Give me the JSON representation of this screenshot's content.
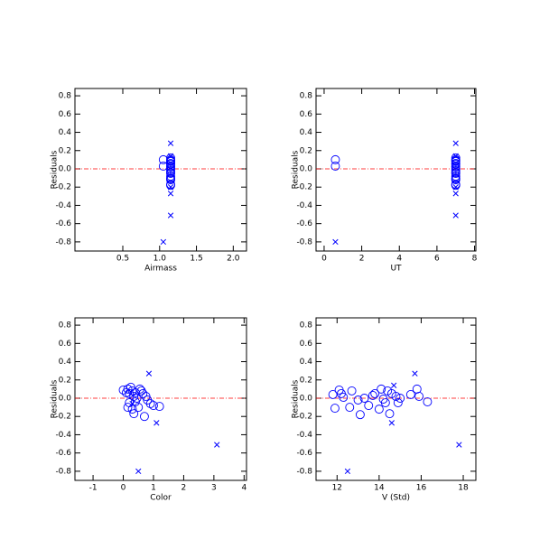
{
  "chart_data": [
    {
      "type": "scatter",
      "xlabel": "Airmass",
      "ylabel": "Residuals",
      "xlim": [
        -0.15,
        2.18
      ],
      "ylim": [
        -0.9,
        0.88
      ],
      "xticks": [
        0.5,
        {
          "value": 1,
          "label": "1.0"
        },
        1.5,
        {
          "value": 2,
          "label": "2.0"
        }
      ],
      "yticks": [
        -0.8,
        -0.6,
        -0.4,
        -0.2,
        {
          "value": 0,
          "label": "0.0"
        },
        0.2,
        0.4,
        0.6,
        0.8
      ],
      "reference_line": {
        "value": 0,
        "color": "#ff0000"
      },
      "series": [
        {
          "marker": "circle",
          "color": "#0000ff",
          "x": [
            1.05,
            1.05,
            1.15,
            1.15,
            1.15,
            1.15,
            1.15,
            1.15,
            1.15,
            1.15,
            1.15,
            1.15,
            1.15,
            1.15,
            1.15,
            1.15,
            1.15,
            1.15,
            1.15,
            1.15
          ],
          "y": [
            0.1,
            0.03,
            0.12,
            0.1,
            0.08,
            0.06,
            0.05,
            0.03,
            0.02,
            0,
            -0.02,
            -0.04,
            -0.05,
            -0.08,
            -0.1,
            -0.11,
            -0.12,
            -0.17,
            -0.18,
            0.09
          ]
        },
        {
          "marker": "cross",
          "color": "#0000ff",
          "x": [
            1.15,
            1.15,
            1.15,
            1.15,
            1.15,
            1.05
          ],
          "y": [
            0.28,
            0.14,
            -0.2,
            -0.27,
            -0.51,
            -0.8
          ]
        }
      ]
    },
    {
      "type": "scatter",
      "xlabel": "UT",
      "ylabel": "Residuals",
      "xlim": [
        -0.43,
        8.07
      ],
      "ylim": [
        -0.9,
        0.88
      ],
      "xticks": [
        0,
        2,
        4,
        6,
        8
      ],
      "yticks": [
        -0.8,
        -0.6,
        -0.4,
        -0.2,
        {
          "value": 0,
          "label": "0.0"
        },
        0.2,
        0.4,
        0.6,
        0.8
      ],
      "reference_line": {
        "value": 0,
        "color": "#ff0000"
      },
      "series": [
        {
          "marker": "circle",
          "color": "#0000ff",
          "x": [
            0.6,
            0.6,
            7,
            7,
            7,
            7,
            7,
            7,
            7,
            7,
            7,
            7,
            7,
            7,
            7,
            7,
            7,
            7,
            7,
            7
          ],
          "y": [
            0.1,
            0.03,
            0.12,
            0.1,
            0.08,
            0.06,
            0.05,
            0.03,
            0.02,
            0,
            -0.02,
            -0.04,
            -0.05,
            -0.08,
            -0.1,
            -0.11,
            -0.12,
            -0.17,
            -0.18,
            0.09
          ]
        },
        {
          "marker": "cross",
          "color": "#0000ff",
          "x": [
            7,
            7,
            7,
            7,
            7,
            0.6
          ],
          "y": [
            0.28,
            0.14,
            -0.2,
            -0.27,
            -0.51,
            -0.8
          ]
        }
      ]
    },
    {
      "type": "scatter",
      "xlabel": "Color",
      "ylabel": "Residuals",
      "xlim": [
        -1.6,
        4.08
      ],
      "ylim": [
        -0.9,
        0.88
      ],
      "xticks": [
        -1,
        0,
        1,
        2,
        3,
        4
      ],
      "yticks": [
        -0.8,
        -0.6,
        -0.4,
        -0.2,
        {
          "value": 0,
          "label": "0.0"
        },
        0.2,
        0.4,
        0.6,
        0.8
      ],
      "reference_line": {
        "value": 0,
        "color": "#ff0000"
      },
      "series": [
        {
          "marker": "circle",
          "color": "#0000ff",
          "x": [
            0,
            0.1,
            0.15,
            0.2,
            0.25,
            0.3,
            0.35,
            0.4,
            0.45,
            0.2,
            0.15,
            0.3,
            0.35,
            0.5,
            0.6,
            0.7,
            0.75,
            0.8,
            0.9,
            1.0,
            1.2,
            0.55,
            0.65,
            0.4
          ],
          "y": [
            0.09,
            0.06,
            0.1,
            0.05,
            0.12,
            0.08,
            0.02,
            0.06,
            0,
            -0.05,
            -0.1,
            -0.12,
            -0.17,
            -0.1,
            0.08,
            -0.2,
            0.02,
            -0.02,
            -0.06,
            -0.08,
            -0.09,
            0.1,
            0.05,
            -0.04
          ]
        },
        {
          "marker": "cross",
          "color": "#0000ff",
          "x": [
            0.85,
            1.1,
            3.1,
            0.5,
            0.3
          ],
          "y": [
            0.27,
            -0.27,
            -0.51,
            -0.8,
            -0.06
          ]
        }
      ]
    },
    {
      "type": "scatter",
      "xlabel": "V (Std)",
      "ylabel": "Residuals",
      "xlim": [
        11,
        18.6
      ],
      "ylim": [
        -0.9,
        0.88
      ],
      "xticks": [
        12,
        14,
        16,
        18
      ],
      "yticks": [
        -0.8,
        -0.6,
        -0.4,
        -0.2,
        {
          "value": 0,
          "label": "0.0"
        },
        0.2,
        0.4,
        0.6,
        0.8
      ],
      "reference_line": {
        "value": 0,
        "color": "#ff0000"
      },
      "series": [
        {
          "marker": "circle",
          "color": "#0000ff",
          "x": [
            11.8,
            11.9,
            12.1,
            12.2,
            12.3,
            12.6,
            12.7,
            13,
            13.1,
            13.3,
            13.5,
            13.7,
            13.8,
            14,
            14.1,
            14.2,
            14.4,
            14.5,
            14.6,
            14.8,
            14.9,
            15,
            15.5,
            15.8,
            15.9,
            16.3,
            14.3
          ],
          "y": [
            0.04,
            -0.11,
            0.09,
            0.05,
            0.01,
            -0.1,
            0.08,
            -0.02,
            -0.18,
            0,
            -0.08,
            0.03,
            0.05,
            -0.12,
            0.1,
            -0.01,
            0.08,
            -0.17,
            0.05,
            0.02,
            -0.05,
            0,
            0.04,
            0.1,
            0.02,
            -0.04,
            -0.05
          ]
        },
        {
          "marker": "cross",
          "color": "#0000ff",
          "x": [
            15.7,
            14.6,
            17.8,
            12.5,
            14.7
          ],
          "y": [
            0.27,
            -0.27,
            -0.51,
            -0.8,
            0.14
          ]
        }
      ]
    }
  ]
}
